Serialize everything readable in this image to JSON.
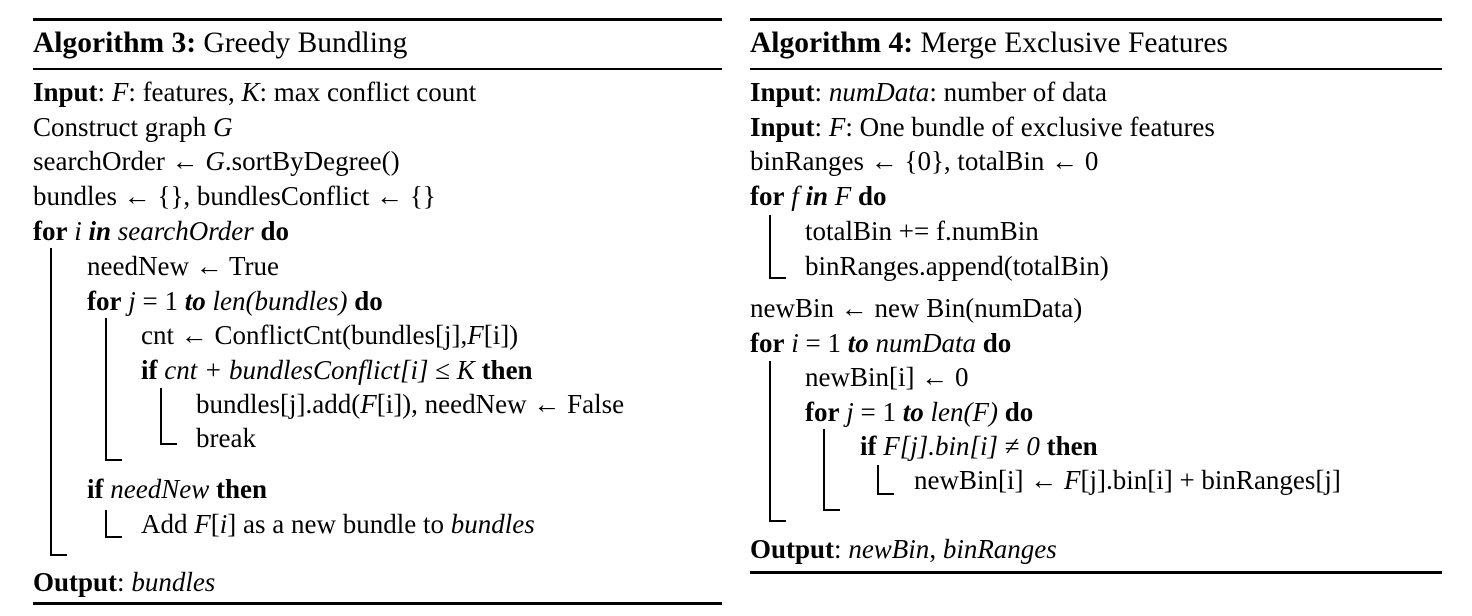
{
  "algo3": {
    "title_label": "Algorithm 3:",
    "title_text": "Greedy Bundling",
    "lines": [
      [
        {
          "t": "Input",
          "s": "b"
        },
        {
          "t": ": "
        },
        {
          "t": "F",
          "s": "i"
        },
        {
          "t": ": features, "
        },
        {
          "t": "K",
          "s": "i"
        },
        {
          "t": ": max conflict count"
        }
      ],
      [
        {
          "t": "Construct graph "
        },
        {
          "t": "G",
          "s": "i"
        }
      ],
      [
        {
          "t": "searchOrder ← "
        },
        {
          "t": "G",
          "s": "i"
        },
        {
          "t": ".sortByDegree()"
        }
      ],
      [
        {
          "t": "bundles ← {}, bundlesConflict ← {}"
        }
      ],
      [
        {
          "t": "for",
          "s": "b"
        },
        {
          "t": " "
        },
        {
          "t": "i",
          "s": "i"
        },
        {
          "t": " "
        },
        {
          "t": "in",
          "s": "bi"
        },
        {
          "t": " "
        },
        {
          "t": "searchOrder",
          "s": "i"
        },
        {
          "t": " "
        },
        {
          "t": "do",
          "s": "b"
        }
      ],
      [
        {
          "t": "needNew ← True"
        }
      ],
      [
        {
          "t": "for",
          "s": "b"
        },
        {
          "t": " "
        },
        {
          "t": "j",
          "s": "i"
        },
        {
          "t": " = 1 "
        },
        {
          "t": "to",
          "s": "bi"
        },
        {
          "t": " "
        },
        {
          "t": "len(bundles)",
          "s": "i"
        },
        {
          "t": " "
        },
        {
          "t": "do",
          "s": "b"
        }
      ],
      [
        {
          "t": "cnt ← ConflictCnt(bundles[j],"
        },
        {
          "t": "F",
          "s": "i"
        },
        {
          "t": "[i])"
        }
      ],
      [
        {
          "t": "if",
          "s": "b"
        },
        {
          "t": " "
        },
        {
          "t": "cnt + bundlesConflict[i]",
          "s": "i"
        },
        {
          "t": " ≤ "
        },
        {
          "t": "K",
          "s": "i"
        },
        {
          "t": " "
        },
        {
          "t": "then",
          "s": "b"
        }
      ],
      [
        {
          "t": "bundles[j].add("
        },
        {
          "t": "F",
          "s": "i"
        },
        {
          "t": "[i]), needNew ← False"
        }
      ],
      [
        {
          "t": "break"
        }
      ],
      [
        {
          "t": "if",
          "s": "b"
        },
        {
          "t": " "
        },
        {
          "t": "needNew",
          "s": "i"
        },
        {
          "t": " "
        },
        {
          "t": "then",
          "s": "b"
        }
      ],
      [
        {
          "t": "Add "
        },
        {
          "t": "F",
          "s": "i"
        },
        {
          "t": "["
        },
        {
          "t": "i",
          "s": "i"
        },
        {
          "t": "] as a new bundle to "
        },
        {
          "t": "bundles",
          "s": "i"
        }
      ],
      [
        {
          "t": "Output",
          "s": "b"
        },
        {
          "t": ": "
        },
        {
          "t": "bundles",
          "s": "i"
        }
      ]
    ]
  },
  "algo4": {
    "title_label": "Algorithm 4:",
    "title_text": "Merge Exclusive Features",
    "lines": [
      [
        {
          "t": "Input",
          "s": "b"
        },
        {
          "t": ": "
        },
        {
          "t": "numData",
          "s": "i"
        },
        {
          "t": ": number of data"
        }
      ],
      [
        {
          "t": "Input",
          "s": "b"
        },
        {
          "t": ": "
        },
        {
          "t": "F",
          "s": "i"
        },
        {
          "t": ": One bundle of exclusive features"
        }
      ],
      [
        {
          "t": "binRanges ← {0}, totalBin ← 0"
        }
      ],
      [
        {
          "t": "for",
          "s": "b"
        },
        {
          "t": " "
        },
        {
          "t": "f",
          "s": "i"
        },
        {
          "t": " "
        },
        {
          "t": "in",
          "s": "bi"
        },
        {
          "t": " "
        },
        {
          "t": "F",
          "s": "i"
        },
        {
          "t": " "
        },
        {
          "t": "do",
          "s": "b"
        }
      ],
      [
        {
          "t": "totalBin += f.numBin"
        }
      ],
      [
        {
          "t": "binRanges.append(totalBin)"
        }
      ],
      [
        {
          "t": "newBin ← new   Bin(numData)"
        }
      ],
      [
        {
          "t": "for",
          "s": "b"
        },
        {
          "t": " "
        },
        {
          "t": "i",
          "s": "i"
        },
        {
          "t": " = 1 "
        },
        {
          "t": "to",
          "s": "bi"
        },
        {
          "t": " "
        },
        {
          "t": "numData",
          "s": "i"
        },
        {
          "t": " "
        },
        {
          "t": "do",
          "s": "b"
        }
      ],
      [
        {
          "t": "newBin[i] ← 0"
        }
      ],
      [
        {
          "t": "for",
          "s": "b"
        },
        {
          "t": " "
        },
        {
          "t": "j",
          "s": "i"
        },
        {
          "t": " = 1 "
        },
        {
          "t": "to",
          "s": "bi"
        },
        {
          "t": " "
        },
        {
          "t": "len(F)",
          "s": "i"
        },
        {
          "t": " "
        },
        {
          "t": "do",
          "s": "b"
        }
      ],
      [
        {
          "t": "if",
          "s": "b"
        },
        {
          "t": " "
        },
        {
          "t": "F[j].bin[i]",
          "s": "i"
        },
        {
          "t": " ≠ "
        },
        {
          "t": "0",
          "s": "i"
        },
        {
          "t": " "
        },
        {
          "t": "then",
          "s": "b"
        }
      ],
      [
        {
          "t": "newBin[i] ← "
        },
        {
          "t": "F",
          "s": "i"
        },
        {
          "t": "[j].bin[i] + binRanges[j]"
        }
      ],
      [
        {
          "t": "Output",
          "s": "b"
        },
        {
          "t": ": "
        },
        {
          "t": "newBin",
          "s": "i"
        },
        {
          "t": ", "
        },
        {
          "t": "binRanges",
          "s": "i"
        }
      ]
    ]
  }
}
